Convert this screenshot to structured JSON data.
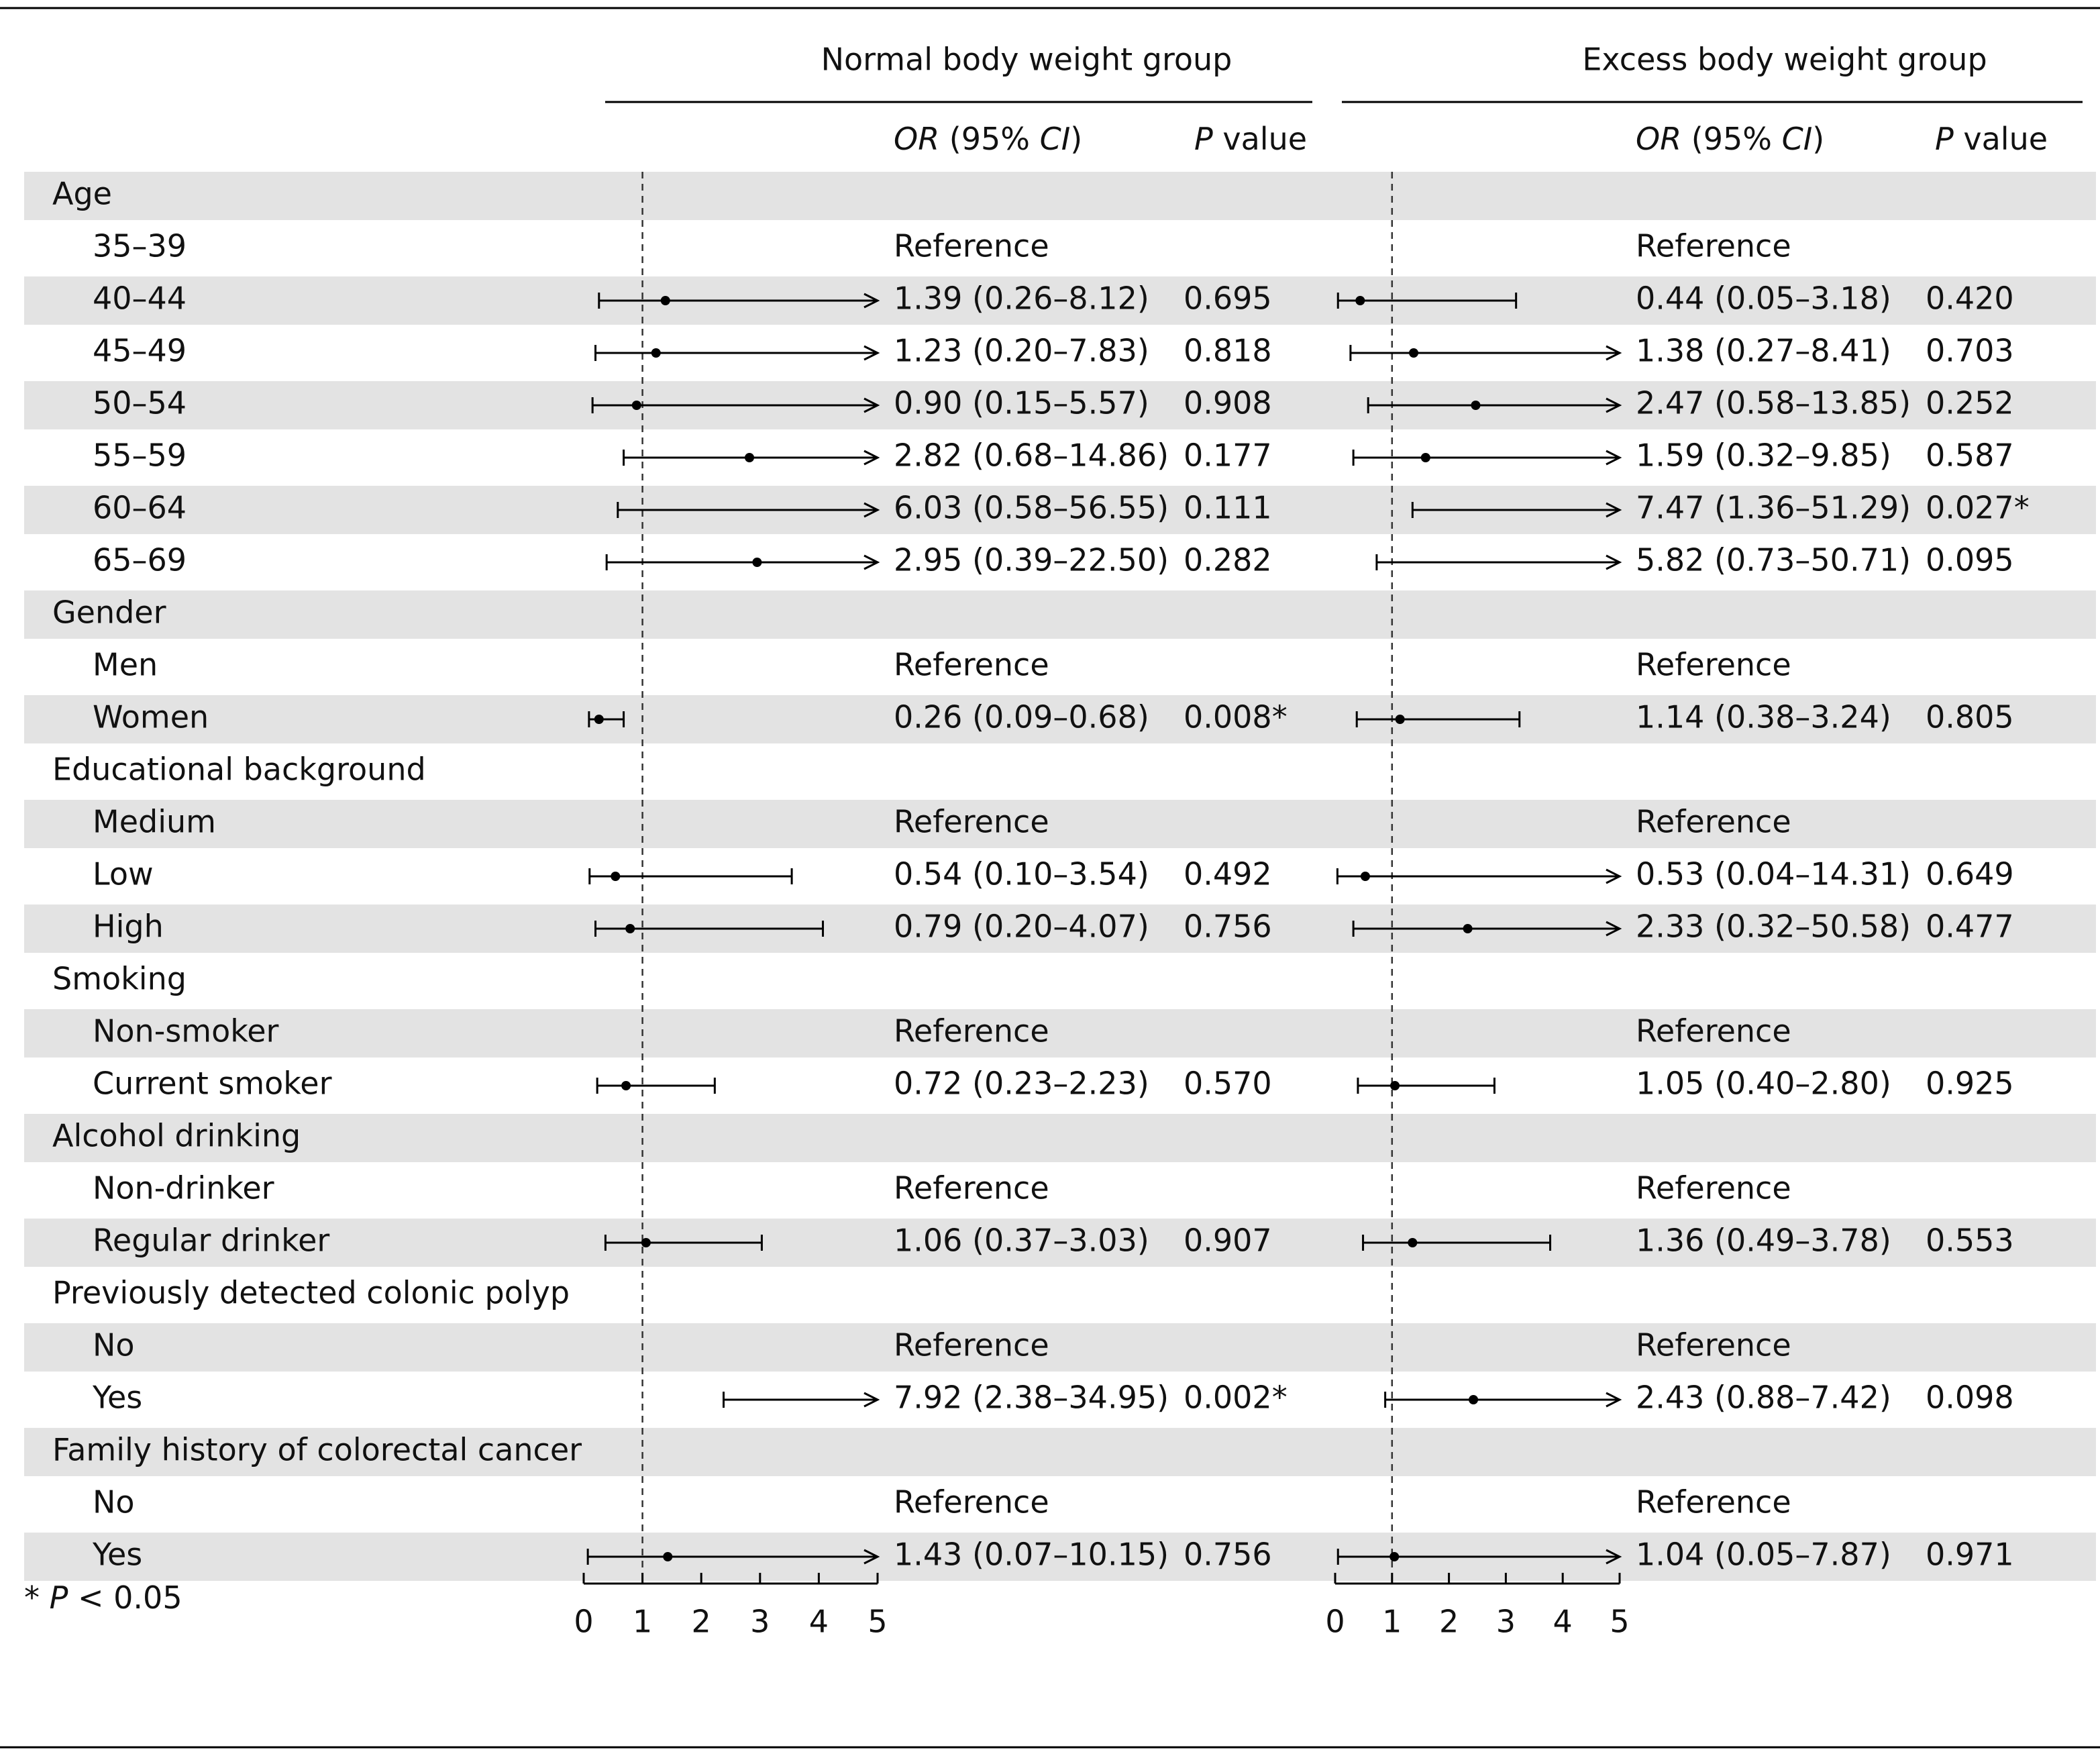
{
  "chart_data": {
    "type": "forest",
    "or_header": [
      {
        "text": "OR",
        "italic": true
      },
      {
        "text": " (95% ",
        "italic": false
      },
      {
        "text": "CI",
        "italic": true
      },
      {
        "text": ")",
        "italic": false
      }
    ],
    "p_header": [
      {
        "text": "P",
        "italic": true
      },
      {
        "text": " value",
        "italic": false
      }
    ],
    "footnote": [
      {
        "text": "* ",
        "italic": false
      },
      {
        "text": "P",
        "italic": true
      },
      {
        "text": " < 0.05",
        "italic": false
      }
    ],
    "groups": [
      {
        "label": "Age",
        "items": [
          "35–39",
          "40–44",
          "45–49",
          "50–54",
          "55–59",
          "60–64",
          "65–69"
        ]
      },
      {
        "label": "Gender",
        "items": [
          "Men",
          "Women"
        ]
      },
      {
        "label": "Educational background",
        "items": [
          "Medium",
          "Low",
          "High"
        ]
      },
      {
        "label": "Smoking",
        "items": [
          "Non-smoker",
          "Current smoker"
        ]
      },
      {
        "label": "Alcohol drinking",
        "items": [
          "Non-drinker",
          "Regular drinker"
        ]
      },
      {
        "label": "Previously detected colonic polyp",
        "items": [
          "No",
          "Yes"
        ]
      },
      {
        "label": "Family history of colorectal cancer",
        "items": [
          "No",
          "Yes"
        ]
      }
    ],
    "panels": [
      {
        "title": "Normal body weight group",
        "xlim": [
          0,
          5
        ],
        "xticks": [
          0,
          1,
          2,
          3,
          4,
          5
        ],
        "ref_line": 1,
        "color": "#000000",
        "estimates": [
          {
            "label": "Reference"
          },
          {
            "values": [
              1.39,
              0.26,
              8.12
            ],
            "value_label": "1.39 (0.26–8.12)",
            "p_value": "0.695"
          },
          {
            "values": [
              1.23,
              0.2,
              7.83
            ],
            "value_label": "1.23 (0.20–7.83)",
            "p_value": "0.818"
          },
          {
            "values": [
              0.9,
              0.15,
              5.57
            ],
            "value_label": "0.90 (0.15–5.57)",
            "p_value": "0.908"
          },
          {
            "values": [
              2.82,
              0.68,
              14.86
            ],
            "value_label": "2.82 (0.68–14.86)",
            "p_value": "0.177"
          },
          {
            "values": [
              6.03,
              0.58,
              56.55
            ],
            "value_label": "6.03 (0.58–56.55)",
            "p_value": "0.111"
          },
          {
            "values": [
              2.95,
              0.39,
              22.5
            ],
            "value_label": "2.95 (0.39–22.50)",
            "p_value": "0.282"
          },
          {
            "label": "Reference"
          },
          {
            "values": [
              0.26,
              0.09,
              0.68
            ],
            "value_label": "0.26 (0.09–0.68)",
            "p_value": "0.008*"
          },
          {
            "label": "Reference"
          },
          {
            "values": [
              0.54,
              0.1,
              3.54
            ],
            "value_label": "0.54 (0.10–3.54)",
            "p_value": "0.492"
          },
          {
            "values": [
              0.79,
              0.2,
              4.07
            ],
            "value_label": "0.79 (0.20–4.07)",
            "p_value": "0.756"
          },
          {
            "label": "Reference"
          },
          {
            "values": [
              0.72,
              0.23,
              2.23
            ],
            "value_label": "0.72 (0.23–2.23)",
            "p_value": "0.570"
          },
          {
            "label": "Reference"
          },
          {
            "values": [
              1.06,
              0.37,
              3.03
            ],
            "value_label": "1.06 (0.37–3.03)",
            "p_value": "0.907"
          },
          {
            "label": "Reference"
          },
          {
            "values": [
              7.92,
              2.38,
              34.95
            ],
            "value_label": "7.92 (2.38–34.95)",
            "p_value": "0.002*"
          },
          {
            "label": "Reference"
          },
          {
            "values": [
              1.43,
              0.07,
              10.15
            ],
            "value_label": "1.43 (0.07–10.15)",
            "p_value": "0.756"
          }
        ]
      },
      {
        "title": "Excess body weight group",
        "xlim": [
          0,
          5
        ],
        "xticks": [
          0,
          1,
          2,
          3,
          4,
          5
        ],
        "ref_line": 1,
        "color": "#000000",
        "estimates": [
          {
            "label": "Reference"
          },
          {
            "values": [
              0.44,
              0.05,
              3.18
            ],
            "value_label": "0.44 (0.05–3.18)",
            "p_value": "0.420"
          },
          {
            "values": [
              1.38,
              0.27,
              8.41
            ],
            "value_label": "1.38 (0.27–8.41)",
            "p_value": "0.703"
          },
          {
            "values": [
              2.47,
              0.58,
              13.85
            ],
            "value_label": "2.47 (0.58–13.85)",
            "p_value": "0.252"
          },
          {
            "values": [
              1.59,
              0.32,
              9.85
            ],
            "value_label": "1.59 (0.32–9.85)",
            "p_value": "0.587"
          },
          {
            "values": [
              7.47,
              1.36,
              51.29
            ],
            "value_label": "7.47 (1.36–51.29)",
            "p_value": "0.027*"
          },
          {
            "values": [
              5.82,
              0.73,
              50.71
            ],
            "value_label": "5.82 (0.73–50.71)",
            "p_value": "0.095"
          },
          {
            "label": "Reference"
          },
          {
            "values": [
              1.14,
              0.38,
              3.24
            ],
            "value_label": "1.14 (0.38–3.24)",
            "p_value": "0.805"
          },
          {
            "label": "Reference"
          },
          {
            "values": [
              0.53,
              0.04,
              14.31
            ],
            "value_label": "0.53 (0.04–14.31)",
            "p_value": "0.649"
          },
          {
            "values": [
              2.33,
              0.32,
              50.58
            ],
            "value_label": "2.33 (0.32–50.58)",
            "p_value": "0.477"
          },
          {
            "label": "Reference"
          },
          {
            "values": [
              1.05,
              0.4,
              2.8
            ],
            "value_label": "1.05 (0.40–2.80)",
            "p_value": "0.925"
          },
          {
            "label": "Reference"
          },
          {
            "values": [
              1.36,
              0.49,
              3.78
            ],
            "value_label": "1.36 (0.49–3.78)",
            "p_value": "0.553"
          },
          {
            "label": "Reference"
          },
          {
            "values": [
              2.43,
              0.88,
              7.42
            ],
            "value_label": "2.43 (0.88–7.42)",
            "p_value": "0.098"
          },
          {
            "label": "Reference"
          },
          {
            "values": [
              1.04,
              0.05,
              7.87
            ],
            "value_label": "1.04 (0.05–7.87)",
            "p_value": "0.971"
          }
        ]
      }
    ]
  }
}
